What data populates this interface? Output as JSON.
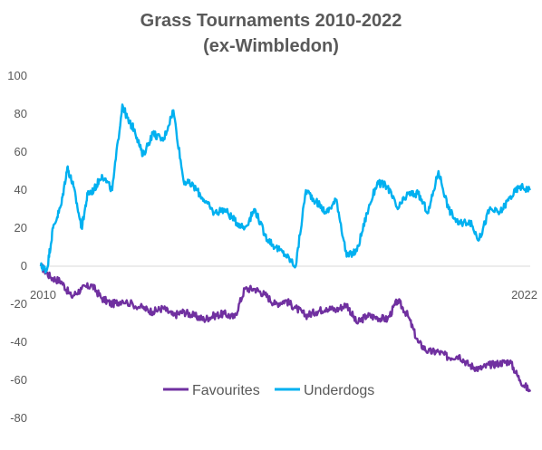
{
  "chart_data": {
    "type": "line",
    "title": "Grass Tournaments 2010-2022",
    "subtitle": "(ex-Wimbledon)",
    "xlabel": "",
    "ylabel": "",
    "ylim": [
      -80,
      100
    ],
    "yticks": [
      "100",
      "80",
      "60",
      "40",
      "20",
      "0",
      "-20",
      "-40",
      "-60",
      "-80"
    ],
    "xlim": [
      2010,
      2022
    ],
    "x_tick_labels": [
      "2010",
      "2022"
    ],
    "grid": false,
    "legend_position": "bottom-center",
    "series": [
      {
        "name": "Favourites",
        "color": "#7030a0",
        "x": [
          2010.0,
          2010.25,
          2010.5,
          2010.75,
          2011.0,
          2011.25,
          2011.5,
          2011.75,
          2012.0,
          2012.5,
          2012.75,
          2013.0,
          2013.25,
          2013.5,
          2013.75,
          2014.0,
          2014.25,
          2014.5,
          2014.75,
          2015.0,
          2015.25,
          2015.5,
          2015.75,
          2016.0,
          2016.25,
          2016.5,
          2016.75,
          2017.0,
          2017.25,
          2017.5,
          2017.75,
          2018.0,
          2018.25,
          2018.5,
          2018.75,
          2019.0,
          2019.25,
          2019.5,
          2019.75,
          2020.0,
          2020.25,
          2020.5,
          2020.75,
          2021.0,
          2021.25,
          2021.5,
          2021.75,
          2022.0
        ],
        "values": [
          0,
          -6,
          -8,
          -16,
          -12,
          -10,
          -17,
          -20,
          -18,
          -22,
          -24,
          -22,
          -26,
          -24,
          -26,
          -28,
          -26,
          -25,
          -27,
          -12,
          -12,
          -15,
          -20,
          -18,
          -22,
          -26,
          -24,
          -22,
          -23,
          -20,
          -30,
          -26,
          -27,
          -28,
          -18,
          -26,
          -40,
          -45,
          -45,
          -48,
          -47,
          -52,
          -54,
          -52,
          -51,
          -50,
          -60,
          -66
        ]
      },
      {
        "name": "Underdogs",
        "color": "#00b0f0",
        "x": [
          2010.0,
          2010.15,
          2010.3,
          2010.5,
          2010.65,
          2010.8,
          2011.0,
          2011.15,
          2011.3,
          2011.5,
          2011.75,
          2012.0,
          2012.15,
          2012.3,
          2012.5,
          2012.75,
          2013.0,
          2013.25,
          2013.5,
          2013.75,
          2014.0,
          2014.25,
          2014.5,
          2014.75,
          2015.0,
          2015.25,
          2015.5,
          2015.75,
          2016.0,
          2016.25,
          2016.5,
          2016.75,
          2017.0,
          2017.25,
          2017.5,
          2017.75,
          2018.0,
          2018.25,
          2018.5,
          2018.75,
          2019.0,
          2019.25,
          2019.5,
          2019.75,
          2020.0,
          2020.25,
          2020.5,
          2020.75,
          2021.0,
          2021.25,
          2021.5,
          2021.75,
          2022.0
        ],
        "values": [
          0,
          -2,
          20,
          32,
          52,
          42,
          20,
          38,
          40,
          48,
          40,
          85,
          76,
          72,
          58,
          70,
          66,
          82,
          45,
          42,
          35,
          28,
          30,
          24,
          20,
          30,
          16,
          10,
          6,
          0,
          40,
          34,
          28,
          35,
          5,
          8,
          28,
          44,
          42,
          30,
          38,
          38,
          28,
          50,
          30,
          22,
          24,
          14,
          30,
          28,
          36,
          42,
          40
        ]
      }
    ]
  }
}
